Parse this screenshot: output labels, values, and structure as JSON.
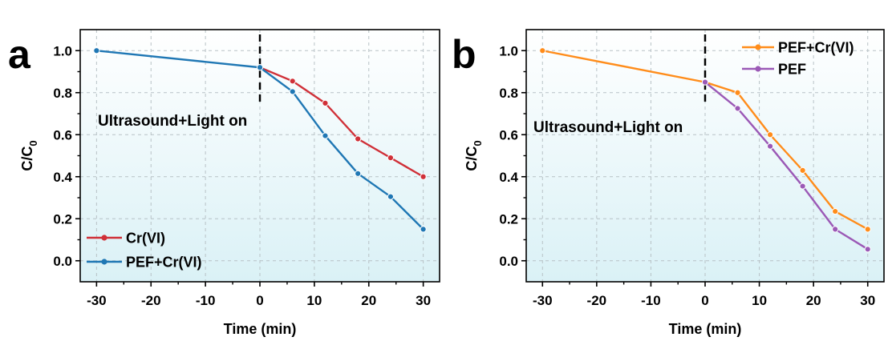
{
  "chart_data": [
    {
      "panel": "a",
      "type": "line",
      "xlabel": "Time (min)",
      "ylabel_main": "C/C",
      "ylabel_sub": "0",
      "xlim": [
        -33,
        33
      ],
      "ylim": [
        -0.1,
        1.1
      ],
      "xticks": [
        -30,
        -20,
        -10,
        0,
        10,
        20,
        30
      ],
      "xtick_labels": [
        "-30",
        "-20",
        "-10",
        "0",
        "10",
        "20",
        "30"
      ],
      "yticks": [
        0.0,
        0.2,
        0.4,
        0.6,
        0.8,
        1.0
      ],
      "ytick_labels": [
        "0.0",
        "0.2",
        "0.4",
        "0.6",
        "0.8",
        "1.0"
      ],
      "annotation": "Ultrasound+Light on",
      "light_on_x": 0,
      "legend_position": "bottom-left",
      "grid": true,
      "series": [
        {
          "name": "Cr(VI)",
          "color": "#d03038",
          "x": [
            0,
            6,
            12,
            18,
            24,
            30
          ],
          "y": [
            0.92,
            0.855,
            0.75,
            0.58,
            0.49,
            0.4
          ]
        },
        {
          "name": "PEF+Cr(VI)",
          "color": "#1f77b4",
          "x": [
            -30,
            0,
            6,
            12,
            18,
            24,
            30
          ],
          "y": [
            1.0,
            0.92,
            0.805,
            0.595,
            0.415,
            0.305,
            0.15
          ]
        }
      ]
    },
    {
      "panel": "b",
      "type": "line",
      "xlabel": "Time (min)",
      "ylabel_main": "C/C",
      "ylabel_sub": "0",
      "xlim": [
        -33,
        33
      ],
      "ylim": [
        -0.1,
        1.1
      ],
      "xticks": [
        -30,
        -20,
        -10,
        0,
        10,
        20,
        30
      ],
      "xtick_labels": [
        "-30",
        "-20",
        "-10",
        "0",
        "10",
        "20",
        "30"
      ],
      "yticks": [
        0.0,
        0.2,
        0.4,
        0.6,
        0.8,
        1.0
      ],
      "ytick_labels": [
        "0.0",
        "0.2",
        "0.4",
        "0.6",
        "0.8",
        "1.0"
      ],
      "annotation": "Ultrasound+Light on",
      "light_on_x": 0,
      "legend_position": "top-right",
      "grid": true,
      "series": [
        {
          "name": "PEF+Cr(VI)",
          "color": "#ff8c1a",
          "x": [
            -30,
            0,
            6,
            12,
            18,
            24,
            30
          ],
          "y": [
            1.0,
            0.85,
            0.8,
            0.6,
            0.43,
            0.235,
            0.15
          ]
        },
        {
          "name": "PEF",
          "color": "#9b59b6",
          "x": [
            0,
            6,
            12,
            18,
            24,
            30
          ],
          "y": [
            0.85,
            0.725,
            0.545,
            0.355,
            0.15,
            0.055
          ]
        }
      ]
    }
  ]
}
